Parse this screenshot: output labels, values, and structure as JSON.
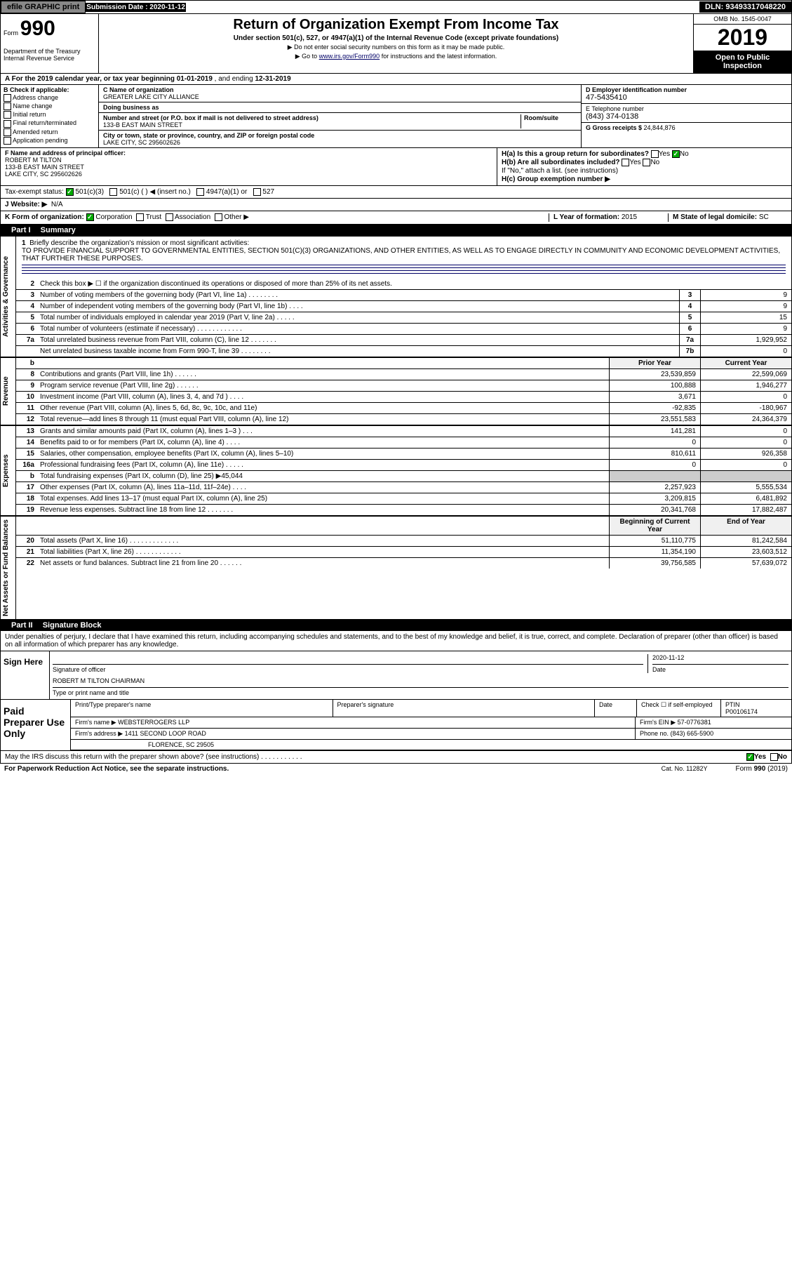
{
  "header_bar": {
    "efile": "efile GRAPHIC print",
    "submission": "Submission Date : 2020-11-12",
    "dln": "DLN: 93493317048220"
  },
  "form_top": {
    "form_word": "Form",
    "form_num": "990",
    "dept": "Department of the Treasury\nInternal Revenue Service",
    "title": "Return of Organization Exempt From Income Tax",
    "sub": "Under section 501(c), 527, or 4947(a)(1) of the Internal Revenue Code (except private foundations)",
    "sub2a": "▶ Do not enter social security numbers on this form as it may be made public.",
    "sub2b": "▶ Go to ",
    "link": "www.irs.gov/Form990",
    "sub2c": " for instructions and the latest information.",
    "omb": "OMB No. 1545-0047",
    "year": "2019",
    "open": "Open to Public Inspection"
  },
  "period": {
    "label_a": "A For the 2019 calendar year, or tax year beginning ",
    "begin": "01-01-2019",
    "mid": " , and ending ",
    "end": "12-31-2019"
  },
  "section_b": {
    "label": "B Check if applicable:",
    "items": [
      "Address change",
      "Name change",
      "Initial return",
      "Final return/terminated",
      "Amended return",
      "Application pending"
    ]
  },
  "section_c": {
    "name_label": "C Name of organization",
    "name": "GREATER LAKE CITY ALLIANCE",
    "dba_label": "Doing business as",
    "addr_label": "Number and street (or P.O. box if mail is not delivered to street address)",
    "room_label": "Room/suite",
    "addr": "133-B EAST MAIN STREET",
    "city_label": "City or town, state or province, country, and ZIP or foreign postal code",
    "city": "LAKE CITY, SC  295602626"
  },
  "section_d": {
    "label": "D Employer identification number",
    "val": "47-5435410"
  },
  "section_e": {
    "label": "E Telephone number",
    "val": "(843) 374-0138"
  },
  "section_g": {
    "label": "G Gross receipts $ ",
    "val": "24,844,876"
  },
  "section_f": {
    "label": "F Name and address of principal officer:",
    "name": "ROBERT M TILTON",
    "addr1": "133-B EAST MAIN STREET",
    "addr2": "LAKE CITY, SC  295602626"
  },
  "section_h": {
    "a": "H(a)  Is this a group return for subordinates?",
    "b": "H(b)  Are all subordinates included?",
    "note": "If \"No,\" attach a list. (see instructions)",
    "c": "H(c)  Group exemption number ▶",
    "yes": "Yes",
    "no": "No"
  },
  "tax_exempt": {
    "label": "Tax-exempt status:",
    "opts": [
      "501(c)(3)",
      "501(c) (   ) ◀ (insert no.)",
      "4947(a)(1) or",
      "527"
    ]
  },
  "website": {
    "label": "J Website: ▶",
    "val": "N/A"
  },
  "section_k": {
    "label": "K Form of organization:",
    "opts": [
      "Corporation",
      "Trust",
      "Association",
      "Other ▶"
    ]
  },
  "section_l": {
    "label": "L Year of formation: ",
    "val": "2015"
  },
  "section_m": {
    "label": "M State of legal domicile: ",
    "val": "SC"
  },
  "part1": {
    "num": "Part I",
    "title": "Summary"
  },
  "mission": {
    "num": "1",
    "label": "Briefly describe the organization's mission or most significant activities:",
    "text": "TO PROVIDE FINANCIAL SUPPORT TO GOVERNMENTAL ENTITIES, SECTION 501(C)(3) ORGANIZATIONS, AND OTHER ENTITIES, AS WELL AS TO ENGAGE DIRECTLY IN COMMUNITY AND ECONOMIC DEVELOPMENT ACTIVITIES, THAT FURTHER THESE PURPOSES."
  },
  "vtabs": {
    "ag": "Activities & Governance",
    "rev": "Revenue",
    "exp": "Expenses",
    "net": "Net Assets or Fund Balances"
  },
  "lines_ag": [
    {
      "n": "2",
      "d": "Check this box ▶ ☐ if the organization discontinued its operations or disposed of more than 25% of its net assets.",
      "box": "",
      "v": ""
    },
    {
      "n": "3",
      "d": "Number of voting members of the governing body (Part VI, line 1a)  .   .   .   .   .   .   .   .",
      "box": "3",
      "v": "9"
    },
    {
      "n": "4",
      "d": "Number of independent voting members of the governing body (Part VI, line 1b)  .   .   .   .",
      "box": "4",
      "v": "9"
    },
    {
      "n": "5",
      "d": "Total number of individuals employed in calendar year 2019 (Part V, line 2a)  .   .   .   .   .",
      "box": "5",
      "v": "15"
    },
    {
      "n": "6",
      "d": "Total number of volunteers (estimate if necessary)   .   .   .   .   .   .   .   .   .   .   .   .",
      "box": "6",
      "v": "9"
    },
    {
      "n": "7a",
      "d": "Total unrelated business revenue from Part VIII, column (C), line 12   .   .   .   .   .   .   .",
      "box": "7a",
      "v": "1,929,952"
    },
    {
      "n": "",
      "d": "Net unrelated business taxable income from Form 990-T, line 39   .   .   .   .   .   .   .   .",
      "box": "7b",
      "v": "0"
    }
  ],
  "col_headers": {
    "prior": "Prior Year",
    "current": "Current Year"
  },
  "lines_rev": [
    {
      "n": "8",
      "d": "Contributions and grants (Part VIII, line 1h)   .   .   .   .   .   .",
      "p": "23,539,859",
      "c": "22,599,069"
    },
    {
      "n": "9",
      "d": "Program service revenue (Part VIII, line 2g)   .   .   .   .   .   .",
      "p": "100,888",
      "c": "1,946,277"
    },
    {
      "n": "10",
      "d": "Investment income (Part VIII, column (A), lines 3, 4, and 7d )    .   .   .   .",
      "p": "3,671",
      "c": "0"
    },
    {
      "n": "11",
      "d": "Other revenue (Part VIII, column (A), lines 5, 6d, 8c, 9c, 10c, and 11e)",
      "p": "-92,835",
      "c": "-180,967"
    },
    {
      "n": "12",
      "d": "Total revenue—add lines 8 through 11 (must equal Part VIII, column (A), line 12)",
      "p": "23,551,583",
      "c": "24,364,379"
    }
  ],
  "lines_exp": [
    {
      "n": "13",
      "d": "Grants and similar amounts paid (Part IX, column (A), lines 1–3 )  .   .   .",
      "p": "141,281",
      "c": "0"
    },
    {
      "n": "14",
      "d": "Benefits paid to or for members (Part IX, column (A), line 4)  .   .   .   .",
      "p": "0",
      "c": "0"
    },
    {
      "n": "15",
      "d": "Salaries, other compensation, employee benefits (Part IX, column (A), lines 5–10)",
      "p": "810,611",
      "c": "926,358"
    },
    {
      "n": "16a",
      "d": "Professional fundraising fees (Part IX, column (A), line 11e)  .   .   .   .   .",
      "p": "0",
      "c": "0"
    },
    {
      "n": "b",
      "d": "Total fundraising expenses (Part IX, column (D), line 25) ▶45,044",
      "p": "",
      "c": "",
      "gray": true
    },
    {
      "n": "17",
      "d": "Other expenses (Part IX, column (A), lines 11a–11d, 11f–24e)   .   .   .   .",
      "p": "2,257,923",
      "c": "5,555,534"
    },
    {
      "n": "18",
      "d": "Total expenses. Add lines 13–17 (must equal Part IX, column (A), line 25)",
      "p": "3,209,815",
      "c": "6,481,892"
    },
    {
      "n": "19",
      "d": "Revenue less expenses. Subtract line 18 from line 12  .   .   .   .   .   .   .",
      "p": "20,341,768",
      "c": "17,882,487"
    }
  ],
  "col_headers2": {
    "begin": "Beginning of Current Year",
    "end": "End of Year"
  },
  "lines_net": [
    {
      "n": "20",
      "d": "Total assets (Part X, line 16)  .   .   .   .   .   .   .   .   .   .   .   .   .",
      "p": "51,110,775",
      "c": "81,242,584"
    },
    {
      "n": "21",
      "d": "Total liabilities (Part X, line 26)  .   .   .   .   .   .   .   .   .   .   .   .",
      "p": "11,354,190",
      "c": "23,603,512"
    },
    {
      "n": "22",
      "d": "Net assets or fund balances. Subtract line 21 from line 20  .   .   .   .   .   .",
      "p": "39,756,585",
      "c": "57,639,072"
    }
  ],
  "part2": {
    "num": "Part II",
    "title": "Signature Block"
  },
  "penalties": "Under penalties of perjury, I declare that I have examined this return, including accompanying schedules and statements, and to the best of my knowledge and belief, it is true, correct, and complete. Declaration of preparer (other than officer) is based on all information of which preparer has any knowledge.",
  "sign": {
    "label": "Sign Here",
    "sig_label": "Signature of officer",
    "date_label": "Date",
    "date": "2020-11-12",
    "name": "ROBERT M TILTON  CHAIRMAN",
    "name_label": "Type or print name and title"
  },
  "paid": {
    "label": "Paid Preparer Use Only",
    "h1": "Print/Type preparer's name",
    "h2": "Preparer's signature",
    "h3": "Date",
    "h4_check": "Check ☐ if self-employed",
    "h4_ptin": "PTIN",
    "ptin": "P00106174",
    "firm_label": "Firm's name    ▶",
    "firm": "WEBSTERROGERS LLP",
    "ein_label": "Firm's EIN ▶",
    "ein": "57-0776381",
    "addr_label": "Firm's address ▶",
    "addr1": "1411 SECOND LOOP ROAD",
    "addr2": "FLORENCE, SC  29505",
    "phone_label": "Phone no. ",
    "phone": "(843) 665-5900"
  },
  "discuss": {
    "q": "May the IRS discuss this return with the preparer shown above? (see instructions)   .   .   .   .   .   .   .   .   .   .   .",
    "yes": "Yes",
    "no": "No"
  },
  "footer": {
    "f1": "For Paperwork Reduction Act Notice, see the separate instructions.",
    "f2": "Cat. No. 11282Y",
    "f3": "Form 990 (2019)"
  }
}
